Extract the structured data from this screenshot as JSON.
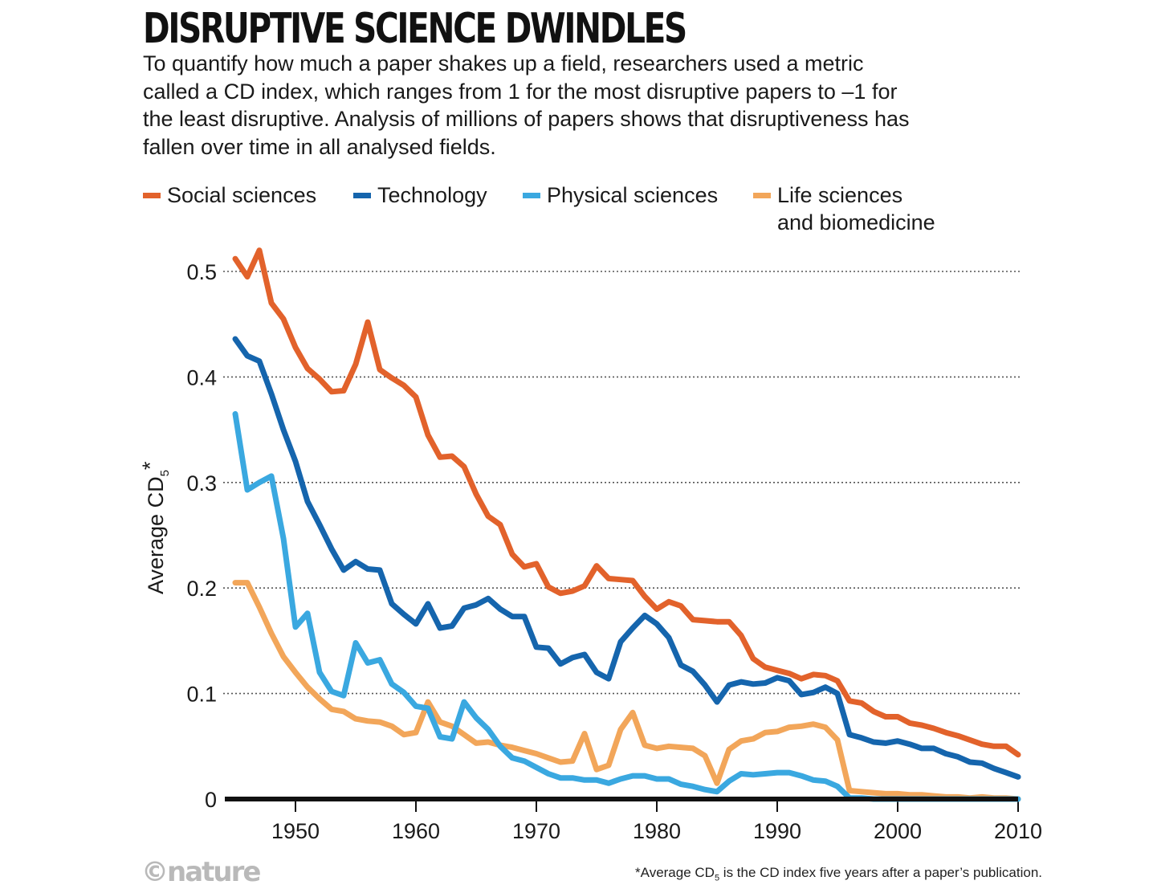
{
  "header": {
    "title": "DISRUPTIVE SCIENCE DWINDLES",
    "subtitle": "To quantify how much a paper shakes up a field, researchers used a metric called a CD index, which ranges from 1 for the most disruptive papers to –1 for the least disruptive. Analysis of millions of papers shows that disruptiveness has fallen over time in all analysed fields."
  },
  "footer": {
    "footnote_prefix": "*Average CD",
    "footnote_sub": "5",
    "footnote_suffix": " is the CD index five years after a paper’s publication.",
    "logo": "©nature"
  },
  "chart_data": {
    "type": "line",
    "ylabel_main": "Average CD",
    "ylabel_sub": "5",
    "ylabel_suffix": "*",
    "ylim": [
      0,
      0.5
    ],
    "xlim": [
      1945,
      2010
    ],
    "yticks": [
      "0",
      "0.1",
      "0.2",
      "0.3",
      "0.4",
      "0.5"
    ],
    "ytick_values": [
      0,
      0.1,
      0.2,
      0.3,
      0.4,
      0.5
    ],
    "xticks": [
      "1950",
      "1960",
      "1970",
      "1980",
      "1990",
      "2000",
      "2010"
    ],
    "xtick_values": [
      1950,
      1960,
      1970,
      1980,
      1990,
      2000,
      2010
    ],
    "grid": "horizontal dotted",
    "legend_position": "top",
    "series": [
      {
        "name": "Social sciences",
        "color": "#e2622b",
        "x": [
          1945,
          1946,
          1947,
          1948,
          1949,
          1950,
          1951,
          1952,
          1953,
          1954,
          1955,
          1956,
          1957,
          1958,
          1959,
          1960,
          1961,
          1962,
          1963,
          1964,
          1965,
          1966,
          1967,
          1968,
          1969,
          1970,
          1971,
          1972,
          1973,
          1974,
          1975,
          1976,
          1977,
          1978,
          1979,
          1980,
          1981,
          1982,
          1983,
          1984,
          1985,
          1986,
          1987,
          1988,
          1989,
          1990,
          1991,
          1992,
          1993,
          1994,
          1995,
          1996,
          1997,
          1998,
          1999,
          2000,
          2001,
          2002,
          2003,
          2004,
          2005,
          2006,
          2007,
          2008,
          2009,
          2010
        ],
        "values": [
          0.512,
          0.495,
          0.52,
          0.47,
          0.455,
          0.428,
          0.408,
          0.398,
          0.386,
          0.387,
          0.412,
          0.452,
          0.407,
          0.399,
          0.392,
          0.381,
          0.345,
          0.324,
          0.325,
          0.315,
          0.289,
          0.268,
          0.26,
          0.232,
          0.22,
          0.223,
          0.201,
          0.195,
          0.197,
          0.202,
          0.221,
          0.209,
          0.208,
          0.207,
          0.192,
          0.18,
          0.187,
          0.183,
          0.17,
          0.169,
          0.168,
          0.168,
          0.155,
          0.133,
          0.125,
          0.122,
          0.119,
          0.114,
          0.118,
          0.117,
          0.112,
          0.093,
          0.091,
          0.083,
          0.078,
          0.078,
          0.072,
          0.07,
          0.067,
          0.063,
          0.06,
          0.056,
          0.052,
          0.05,
          0.05,
          0.042
        ]
      },
      {
        "name": "Technology",
        "color": "#1565ad",
        "x": [
          1945,
          1946,
          1947,
          1948,
          1949,
          1950,
          1951,
          1952,
          1953,
          1954,
          1955,
          1956,
          1957,
          1958,
          1959,
          1960,
          1961,
          1962,
          1963,
          1964,
          1965,
          1966,
          1967,
          1968,
          1969,
          1970,
          1971,
          1972,
          1973,
          1974,
          1975,
          1976,
          1977,
          1978,
          1979,
          1980,
          1981,
          1982,
          1983,
          1984,
          1985,
          1986,
          1987,
          1988,
          1989,
          1990,
          1991,
          1992,
          1993,
          1994,
          1995,
          1996,
          1997,
          1998,
          1999,
          2000,
          2001,
          2002,
          2003,
          2004,
          2005,
          2006,
          2007,
          2008,
          2009,
          2010
        ],
        "values": [
          0.436,
          0.42,
          0.415,
          0.384,
          0.35,
          0.32,
          0.282,
          0.26,
          0.237,
          0.217,
          0.225,
          0.218,
          0.217,
          0.185,
          0.175,
          0.166,
          0.185,
          0.162,
          0.164,
          0.181,
          0.184,
          0.19,
          0.18,
          0.173,
          0.173,
          0.144,
          0.143,
          0.128,
          0.134,
          0.137,
          0.12,
          0.114,
          0.149,
          0.162,
          0.174,
          0.166,
          0.153,
          0.127,
          0.121,
          0.108,
          0.092,
          0.108,
          0.111,
          0.109,
          0.11,
          0.115,
          0.112,
          0.099,
          0.101,
          0.106,
          0.1,
          0.061,
          0.058,
          0.054,
          0.053,
          0.055,
          0.052,
          0.048,
          0.048,
          0.043,
          0.04,
          0.035,
          0.034,
          0.029,
          0.025,
          0.021
        ]
      },
      {
        "name": "Physical sciences",
        "color": "#3aa8e0",
        "x": [
          1945,
          1946,
          1947,
          1948,
          1949,
          1950,
          1951,
          1952,
          1953,
          1954,
          1955,
          1956,
          1957,
          1958,
          1959,
          1960,
          1961,
          1962,
          1963,
          1964,
          1965,
          1966,
          1967,
          1968,
          1969,
          1970,
          1971,
          1972,
          1973,
          1974,
          1975,
          1976,
          1977,
          1978,
          1979,
          1980,
          1981,
          1982,
          1983,
          1984,
          1985,
          1986,
          1987,
          1988,
          1989,
          1990,
          1991,
          1992,
          1993,
          1994,
          1995,
          1996,
          1997,
          1998,
          1999,
          2000,
          2001,
          2002,
          2003,
          2004,
          2005,
          2006,
          2007,
          2008,
          2009,
          2010
        ],
        "values": [
          0.365,
          0.293,
          0.3,
          0.306,
          0.247,
          0.163,
          0.176,
          0.12,
          0.102,
          0.098,
          0.148,
          0.129,
          0.132,
          0.109,
          0.101,
          0.088,
          0.086,
          0.059,
          0.057,
          0.092,
          0.077,
          0.066,
          0.05,
          0.039,
          0.036,
          0.03,
          0.024,
          0.02,
          0.02,
          0.018,
          0.018,
          0.015,
          0.019,
          0.022,
          0.022,
          0.019,
          0.019,
          0.014,
          0.012,
          0.009,
          0.007,
          0.017,
          0.024,
          0.023,
          0.024,
          0.025,
          0.025,
          0.022,
          0.018,
          0.017,
          0.012,
          0.001,
          0.001,
          0.0,
          0.0,
          0.0,
          0.0,
          0.0,
          0.0,
          0.0,
          0.0,
          0.0,
          0.0,
          0.0,
          0.0,
          0.0
        ]
      },
      {
        "name": "Life sciences and biomedicine",
        "name_line1": "Life sciences",
        "name_line2": "and biomedicine",
        "color": "#f2a65a",
        "x": [
          1945,
          1946,
          1947,
          1948,
          1949,
          1950,
          1951,
          1952,
          1953,
          1954,
          1955,
          1956,
          1957,
          1958,
          1959,
          1960,
          1961,
          1962,
          1963,
          1964,
          1965,
          1966,
          1967,
          1968,
          1969,
          1970,
          1971,
          1972,
          1973,
          1974,
          1975,
          1976,
          1977,
          1978,
          1979,
          1980,
          1981,
          1982,
          1983,
          1984,
          1985,
          1986,
          1987,
          1988,
          1989,
          1990,
          1991,
          1992,
          1993,
          1994,
          1995,
          1996,
          1997,
          1998,
          1999,
          2000,
          2001,
          2002,
          2003,
          2004,
          2005,
          2006,
          2007,
          2008,
          2009,
          2010
        ],
        "values": [
          0.205,
          0.205,
          0.182,
          0.157,
          0.135,
          0.12,
          0.106,
          0.095,
          0.085,
          0.083,
          0.076,
          0.074,
          0.073,
          0.069,
          0.061,
          0.063,
          0.092,
          0.073,
          0.069,
          0.061,
          0.053,
          0.054,
          0.051,
          0.049,
          0.046,
          0.043,
          0.039,
          0.035,
          0.036,
          0.062,
          0.028,
          0.032,
          0.066,
          0.082,
          0.051,
          0.048,
          0.05,
          0.049,
          0.048,
          0.041,
          0.015,
          0.047,
          0.055,
          0.057,
          0.063,
          0.064,
          0.068,
          0.069,
          0.071,
          0.068,
          0.056,
          0.008,
          0.007,
          0.006,
          0.005,
          0.005,
          0.004,
          0.004,
          0.003,
          0.002,
          0.002,
          0.001,
          0.002,
          0.001,
          0.001,
          0.0
        ]
      }
    ]
  }
}
